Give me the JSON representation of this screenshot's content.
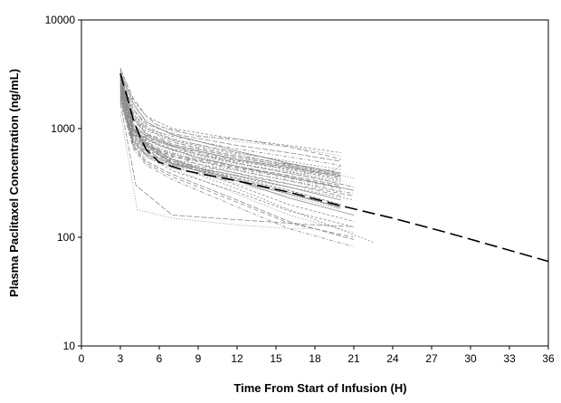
{
  "chart_data": {
    "type": "line",
    "title": "",
    "xlabel": "Time From Start of Infusion (H)",
    "ylabel": "Plasma Paclitaxel Concentration (ng/mL)",
    "xlim": [
      0,
      36
    ],
    "ylim": [
      10,
      10000
    ],
    "yscale": "log",
    "grid": false,
    "legend": "none",
    "x_ticks": [
      0,
      3,
      6,
      9,
      12,
      15,
      18,
      21,
      24,
      27,
      30,
      33,
      36
    ],
    "x_tick_labels": [
      "0",
      "3",
      "6",
      "9",
      "12",
      "15",
      "18",
      "21",
      "24",
      "27",
      "30",
      "33",
      "36"
    ],
    "y_ticks": [
      10,
      100,
      1000,
      10000
    ],
    "y_tick_labels": [
      "10",
      "100",
      "1000",
      "10000"
    ],
    "colors": {
      "individual": "#8a8a8a",
      "mean": "#000000"
    },
    "mean_curve": {
      "style": "dashed",
      "x": [
        3,
        3.5,
        4,
        4.5,
        5,
        6,
        8,
        12,
        16,
        20,
        24,
        28,
        32,
        36
      ],
      "y": [
        3200,
        2000,
        1200,
        850,
        640,
        490,
        410,
        330,
        260,
        195,
        150,
        112,
        82,
        60
      ]
    },
    "series": [
      {
        "x": [
          3,
          4,
          5,
          7,
          12,
          16,
          20
        ],
        "y": [
          3600,
          1800,
          1300,
          1000,
          800,
          700,
          600
        ]
      },
      {
        "x": [
          3,
          4,
          5,
          7,
          12,
          16,
          20
        ],
        "y": [
          3400,
          1600,
          1200,
          950,
          760,
          680,
          560
        ]
      },
      {
        "x": [
          3,
          4,
          5,
          7,
          12,
          16,
          20
        ],
        "y": [
          3000,
          1500,
          1100,
          900,
          700,
          600,
          500
        ]
      },
      {
        "x": [
          3,
          4,
          5,
          7,
          12,
          16,
          20
        ],
        "y": [
          2800,
          1400,
          1000,
          850,
          650,
          550,
          460
        ]
      },
      {
        "x": [
          3,
          4,
          5,
          7,
          12,
          16,
          20
        ],
        "y": [
          3200,
          1300,
          950,
          800,
          600,
          500,
          420
        ]
      },
      {
        "x": [
          3,
          4,
          5,
          7,
          12,
          16,
          20
        ],
        "y": [
          2600,
          1200,
          900,
          750,
          560,
          470,
          390
        ]
      },
      {
        "x": [
          3,
          4,
          5,
          7,
          12,
          16,
          20
        ],
        "y": [
          3000,
          1100,
          850,
          700,
          520,
          440,
          360
        ]
      },
      {
        "x": [
          3,
          4,
          5,
          7,
          12,
          16,
          20
        ],
        "y": [
          2400,
          1000,
          800,
          650,
          500,
          420,
          340
        ]
      },
      {
        "x": [
          3,
          4,
          5,
          7,
          12,
          16,
          20
        ],
        "y": [
          2800,
          950,
          750,
          600,
          470,
          390,
          320
        ]
      },
      {
        "x": [
          3,
          4,
          5,
          7,
          12,
          16,
          20
        ],
        "y": [
          2200,
          900,
          700,
          580,
          450,
          370,
          300
        ]
      },
      {
        "x": [
          3,
          4,
          5,
          7,
          12,
          16,
          20
        ],
        "y": [
          2600,
          850,
          650,
          550,
          430,
          350,
          280
        ]
      },
      {
        "x": [
          3,
          4,
          5,
          7,
          12,
          16,
          20
        ],
        "y": [
          2000,
          800,
          620,
          520,
          410,
          330,
          260
        ]
      },
      {
        "x": [
          3,
          4,
          5,
          7,
          12,
          16,
          20
        ],
        "y": [
          2400,
          780,
          600,
          500,
          390,
          310,
          240
        ]
      },
      {
        "x": [
          3,
          4,
          5,
          7,
          12,
          16,
          20
        ],
        "y": [
          1900,
          750,
          580,
          480,
          370,
          290,
          220
        ]
      },
      {
        "x": [
          3,
          4,
          5,
          7,
          12,
          16,
          20
        ],
        "y": [
          2200,
          720,
          560,
          460,
          350,
          270,
          200
        ]
      },
      {
        "x": [
          3,
          4,
          5,
          7,
          12,
          16,
          20
        ],
        "y": [
          1800,
          700,
          540,
          440,
          330,
          250,
          185
        ]
      },
      {
        "x": [
          3,
          4,
          5,
          7,
          12,
          16,
          20
        ],
        "y": [
          3000,
          1250,
          880,
          720,
          540,
          450,
          370
        ]
      },
      {
        "x": [
          3,
          4,
          5,
          7,
          12,
          16,
          20
        ],
        "y": [
          2500,
          1050,
          820,
          680,
          510,
          430,
          350
        ]
      },
      {
        "x": [
          3,
          4,
          5,
          7,
          12,
          16,
          20
        ],
        "y": [
          2700,
          980,
          780,
          630,
          480,
          400,
          330
        ]
      },
      {
        "x": [
          3,
          4,
          5,
          7,
          12,
          16,
          20
        ],
        "y": [
          2100,
          880,
          680,
          560,
          440,
          360,
          290
        ]
      },
      {
        "x": [
          3,
          4,
          5,
          7,
          12,
          16,
          20
        ],
        "y": [
          3300,
          1700,
          1150,
          880,
          620,
          480,
          390
        ]
      },
      {
        "x": [
          3,
          4,
          5,
          7,
          12,
          16,
          20
        ],
        "y": [
          2900,
          1350,
          1000,
          780,
          580,
          460,
          380
        ]
      },
      {
        "x": [
          3,
          4,
          6,
          9,
          14,
          18,
          21
        ],
        "y": [
          3000,
          1200,
          850,
          650,
          500,
          420,
          350
        ]
      },
      {
        "x": [
          3,
          4,
          6,
          9,
          14,
          18,
          21
        ],
        "y": [
          2600,
          1000,
          750,
          580,
          430,
          350,
          290
        ]
      },
      {
        "x": [
          3,
          4,
          6,
          9,
          14,
          18,
          21
        ],
        "y": [
          2300,
          900,
          650,
          500,
          370,
          300,
          250
        ]
      },
      {
        "x": [
          3,
          4,
          6,
          9,
          14,
          18,
          21
        ],
        "y": [
          2000,
          800,
          580,
          440,
          320,
          260,
          220
        ]
      },
      {
        "x": [
          3,
          4,
          6,
          9,
          14,
          18,
          21
        ],
        "y": [
          2500,
          880,
          620,
          470,
          340,
          280,
          240
        ]
      },
      {
        "x": [
          3,
          4,
          6,
          9,
          14,
          18,
          21
        ],
        "y": [
          2800,
          950,
          700,
          540,
          400,
          320,
          270
        ]
      },
      {
        "x": [
          3,
          4,
          5,
          7,
          12,
          16,
          21
        ],
        "y": [
          2500,
          900,
          650,
          500,
          300,
          200,
          140
        ]
      },
      {
        "x": [
          3,
          4,
          5,
          7,
          12,
          16,
          21
        ],
        "y": [
          2200,
          800,
          580,
          430,
          250,
          160,
          110
        ]
      },
      {
        "x": [
          3,
          4,
          5,
          7,
          12,
          16,
          21
        ],
        "y": [
          2000,
          700,
          500,
          380,
          220,
          140,
          95
        ]
      },
      {
        "x": [
          3,
          4,
          5,
          7,
          12,
          16,
          21
        ],
        "y": [
          1800,
          650,
          460,
          340,
          190,
          120,
          82
        ]
      },
      {
        "x": [
          3,
          4,
          5,
          7,
          12,
          16,
          22.5
        ],
        "y": [
          2300,
          850,
          620,
          460,
          280,
          180,
          90
        ]
      },
      {
        "x": [
          3,
          4,
          5,
          7,
          12,
          16,
          21
        ],
        "y": [
          1900,
          680,
          480,
          360,
          210,
          135,
          100
        ]
      },
      {
        "x": [
          3,
          4,
          5,
          7,
          12,
          16,
          21
        ],
        "y": [
          2600,
          1000,
          720,
          520,
          330,
          230,
          160
        ]
      },
      {
        "x": [
          3,
          4,
          5,
          7,
          12,
          16,
          21
        ],
        "y": [
          2100,
          780,
          560,
          410,
          260,
          175,
          125
        ]
      },
      {
        "x": [
          3,
          4.3,
          7,
          12,
          16,
          18
        ],
        "y": [
          1400,
          180,
          150,
          130,
          120,
          120
        ]
      },
      {
        "x": [
          3,
          4.2,
          7,
          12,
          18,
          21
        ],
        "y": [
          1700,
          300,
          160,
          145,
          130,
          125
        ]
      },
      {
        "x": [
          3,
          4,
          5,
          7,
          12,
          15,
          17,
          19,
          20
        ],
        "y": [
          3200,
          1500,
          1050,
          800,
          600,
          520,
          420,
          380,
          460
        ]
      },
      {
        "x": [
          3,
          4,
          5,
          7,
          12,
          15,
          17,
          19,
          20
        ],
        "y": [
          2900,
          1300,
          900,
          700,
          520,
          440,
          380,
          420,
          360
        ]
      },
      {
        "x": [
          3,
          4,
          5,
          6,
          9,
          12,
          16,
          19,
          20
        ],
        "y": [
          3500,
          1900,
          1300,
          1050,
          850,
          800,
          680,
          560,
          520
        ]
      },
      {
        "x": [
          3,
          3.5,
          4,
          5,
          7,
          12,
          16,
          20
        ],
        "y": [
          3000,
          1600,
          950,
          700,
          470,
          330,
          250,
          190
        ]
      },
      {
        "x": [
          3,
          3.5,
          4,
          5,
          7,
          12,
          16,
          20
        ],
        "y": [
          3300,
          1800,
          1050,
          760,
          500,
          350,
          270,
          200
        ]
      },
      {
        "x": [
          3,
          3.5,
          4,
          5,
          7,
          12,
          16,
          20
        ],
        "y": [
          2800,
          1400,
          850,
          640,
          440,
          310,
          240,
          180
        ]
      },
      {
        "x": [
          3,
          3.5,
          4,
          5,
          7,
          12,
          16,
          20
        ],
        "y": [
          3100,
          1700,
          1000,
          730,
          480,
          340,
          260,
          185
        ]
      }
    ]
  }
}
